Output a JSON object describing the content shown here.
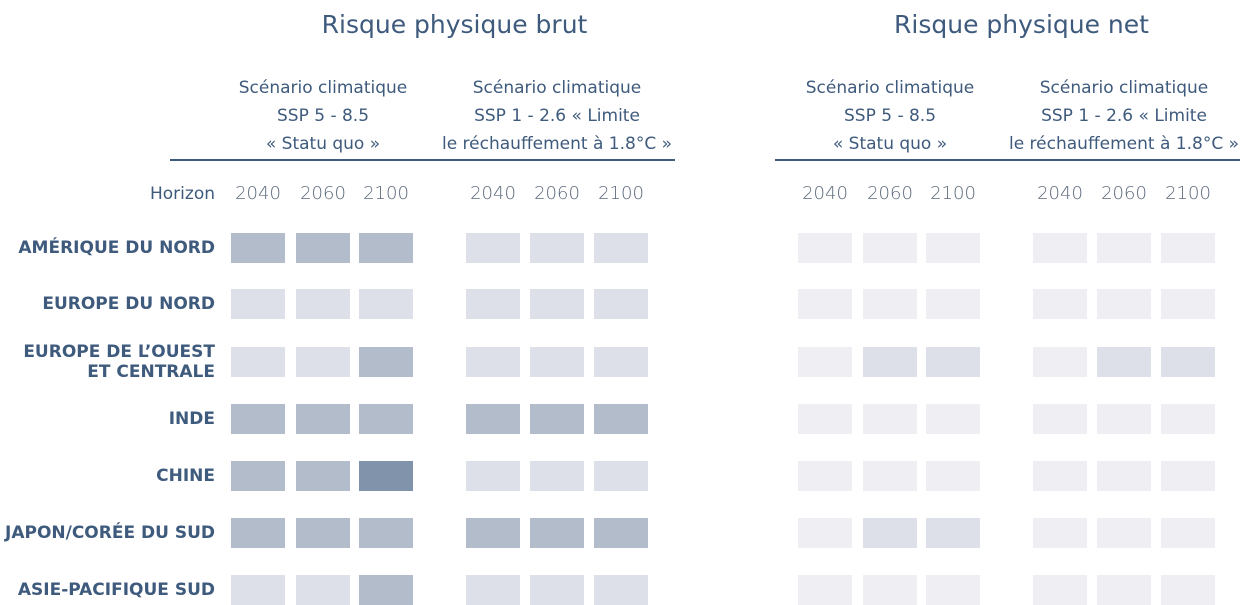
{
  "row_header": "Horizon",
  "panels": [
    {
      "title": "Risque physique brut",
      "scenarios": [
        {
          "lines": [
            "Scénario climatique",
            "SSP 5 - 8.5",
            "« Statu quo »"
          ],
          "years": [
            "2040",
            "2060",
            "2100"
          ]
        },
        {
          "lines": [
            "Scénario climatique",
            "SSP 1 - 2.6 « Limite",
            "le réchauffement à 1.8°C »"
          ],
          "years": [
            "2040",
            "2060",
            "2100"
          ]
        }
      ]
    },
    {
      "title": "Risque physique net",
      "scenarios": [
        {
          "lines": [
            "Scénario climatique",
            "SSP 5 - 8.5",
            "« Statu quo »"
          ],
          "years": [
            "2040",
            "2060",
            "2100"
          ]
        },
        {
          "lines": [
            "Scénario climatique",
            "SSP 1 - 2.6 « Limite",
            "le réchauffement à 1.8°C »"
          ],
          "years": [
            "2040",
            "2060",
            "2100"
          ]
        }
      ]
    }
  ],
  "rows": [
    {
      "label": [
        "AMÉRIQUE DU NORD"
      ],
      "cells": [
        "#b3bccb",
        "#b3bccb",
        "#b3bccb",
        "#dde0e8",
        "#dde0e8",
        "#dde0e8",
        "#efeff3",
        "#efeff3",
        "#efeff3",
        "#efeff3",
        "#efeff3",
        "#efeff3"
      ]
    },
    {
      "label": [
        "EUROPE DU NORD"
      ],
      "cells": [
        "#dde0e8",
        "#dde0e8",
        "#dde0e8",
        "#dde0e8",
        "#dde0e8",
        "#dde0e8",
        "#efeff3",
        "#efeff3",
        "#efeff3",
        "#efeff3",
        "#efeff3",
        "#efeff3"
      ]
    },
    {
      "label": [
        "EUROPE DE L’OUEST",
        "ET CENTRALE"
      ],
      "cells": [
        "#dde0e8",
        "#dde0e8",
        "#b3bccb",
        "#dde0e8",
        "#dde0e8",
        "#dde0e8",
        "#efeff3",
        "#dde0e8",
        "#dde0e8",
        "#efeff3",
        "#dde0e8",
        "#dde0e8"
      ]
    },
    {
      "label": [
        "INDE"
      ],
      "cells": [
        "#b3bccb",
        "#b3bccb",
        "#b3bccb",
        "#b3bccb",
        "#b3bccb",
        "#b3bccb",
        "#efeff3",
        "#efeff3",
        "#efeff3",
        "#efeff3",
        "#efeff3",
        "#efeff3"
      ]
    },
    {
      "label": [
        "CHINE"
      ],
      "cells": [
        "#b3bccb",
        "#b3bccb",
        "#8093ab",
        "#dde0e8",
        "#dde0e8",
        "#dde0e8",
        "#efeff3",
        "#efeff3",
        "#efeff3",
        "#efeff3",
        "#efeff3",
        "#efeff3"
      ]
    },
    {
      "label": [
        "JAPON/CORÉE DU SUD"
      ],
      "cells": [
        "#b3bccb",
        "#b3bccb",
        "#b3bccb",
        "#b3bccb",
        "#b3bccb",
        "#b3bccb",
        "#efeff3",
        "#dde0e8",
        "#dde0e8",
        "#efeff3",
        "#efeff3",
        "#efeff3"
      ]
    },
    {
      "label": [
        "ASIE-PACIFIQUE SUD"
      ],
      "cells": [
        "#dde0e8",
        "#dde0e8",
        "#b3bccb",
        "#dde0e8",
        "#dde0e8",
        "#dde0e8",
        "#efeff3",
        "#efeff3",
        "#efeff3",
        "#efeff3",
        "#efeff3",
        "#efeff3"
      ]
    }
  ]
}
